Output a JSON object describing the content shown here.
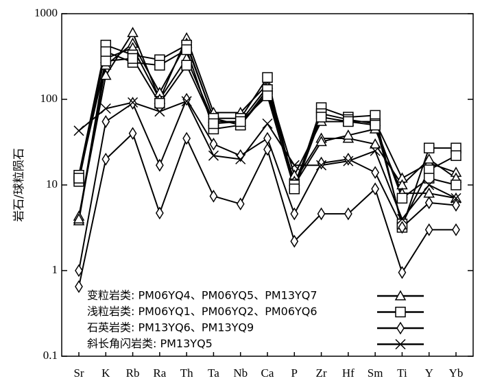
{
  "chart_data": {
    "type": "line",
    "y_label": "岩石/球粒陨石",
    "categories": [
      "Sr",
      "K",
      "Rb",
      "Ra",
      "Th",
      "Ta",
      "Nb",
      "Ca",
      "P",
      "Zr",
      "Hf",
      "Sm",
      "Ti",
      "Y",
      "Yb"
    ],
    "log_y": true,
    "ylim": [
      0.1,
      1000
    ],
    "yticks": [
      0.1,
      1,
      10,
      100,
      1000
    ],
    "color": "#000000",
    "series": [
      {
        "name": "变粒岩类: PM06YQ4、PM06YQ5、PM13YQ7",
        "marker": "triangle",
        "samples": [
          [
            4.3,
            190,
            600,
            100,
            520,
            70,
            70,
            150,
            13,
            55,
            55,
            55,
            12,
            18,
            14
          ],
          [
            3.8,
            250,
            450,
            120,
            450,
            60,
            50,
            120,
            11,
            35,
            35,
            30,
            10,
            20,
            12
          ],
          [
            4,
            300,
            400,
            100,
            300,
            55,
            55,
            140,
            10,
            32,
            38,
            45,
            8,
            8,
            7
          ]
        ]
      },
      {
        "name": "浅粒岩类: PM06YQ1、PM06YQ2、PM06YQ6",
        "marker": "square",
        "samples": [
          [
            13,
            430,
            330,
            290,
            430,
            60,
            60,
            180,
            9,
            80,
            62,
            65,
            3.2,
            27,
            27
          ],
          [
            11,
            360,
            270,
            250,
            380,
            45,
            50,
            130,
            10,
            68,
            58,
            52,
            3.5,
            15,
            22
          ],
          [
            12,
            280,
            300,
            90,
            250,
            52,
            55,
            110,
            9,
            62,
            55,
            50,
            7,
            12,
            10
          ]
        ]
      },
      {
        "name": "石英岩类: PM13YQ6、PM13YQ9",
        "marker": "diamond",
        "samples": [
          [
            1.0,
            55,
            90,
            17,
            100,
            30,
            22,
            35,
            4.6,
            18,
            20,
            14,
            3.2,
            6.2,
            5.8
          ],
          [
            0.65,
            20,
            40,
            4.7,
            35,
            7.4,
            6,
            26,
            2.2,
            4.6,
            4.6,
            9,
            0.95,
            3,
            3
          ]
        ]
      },
      {
        "name": "斜长角闪岩类: PM13YQ5",
        "marker": "cross",
        "samples": [
          [
            43,
            78,
            92,
            72,
            95,
            22,
            20,
            52,
            17,
            17,
            19,
            25,
            4,
            10,
            7
          ]
        ]
      }
    ]
  }
}
